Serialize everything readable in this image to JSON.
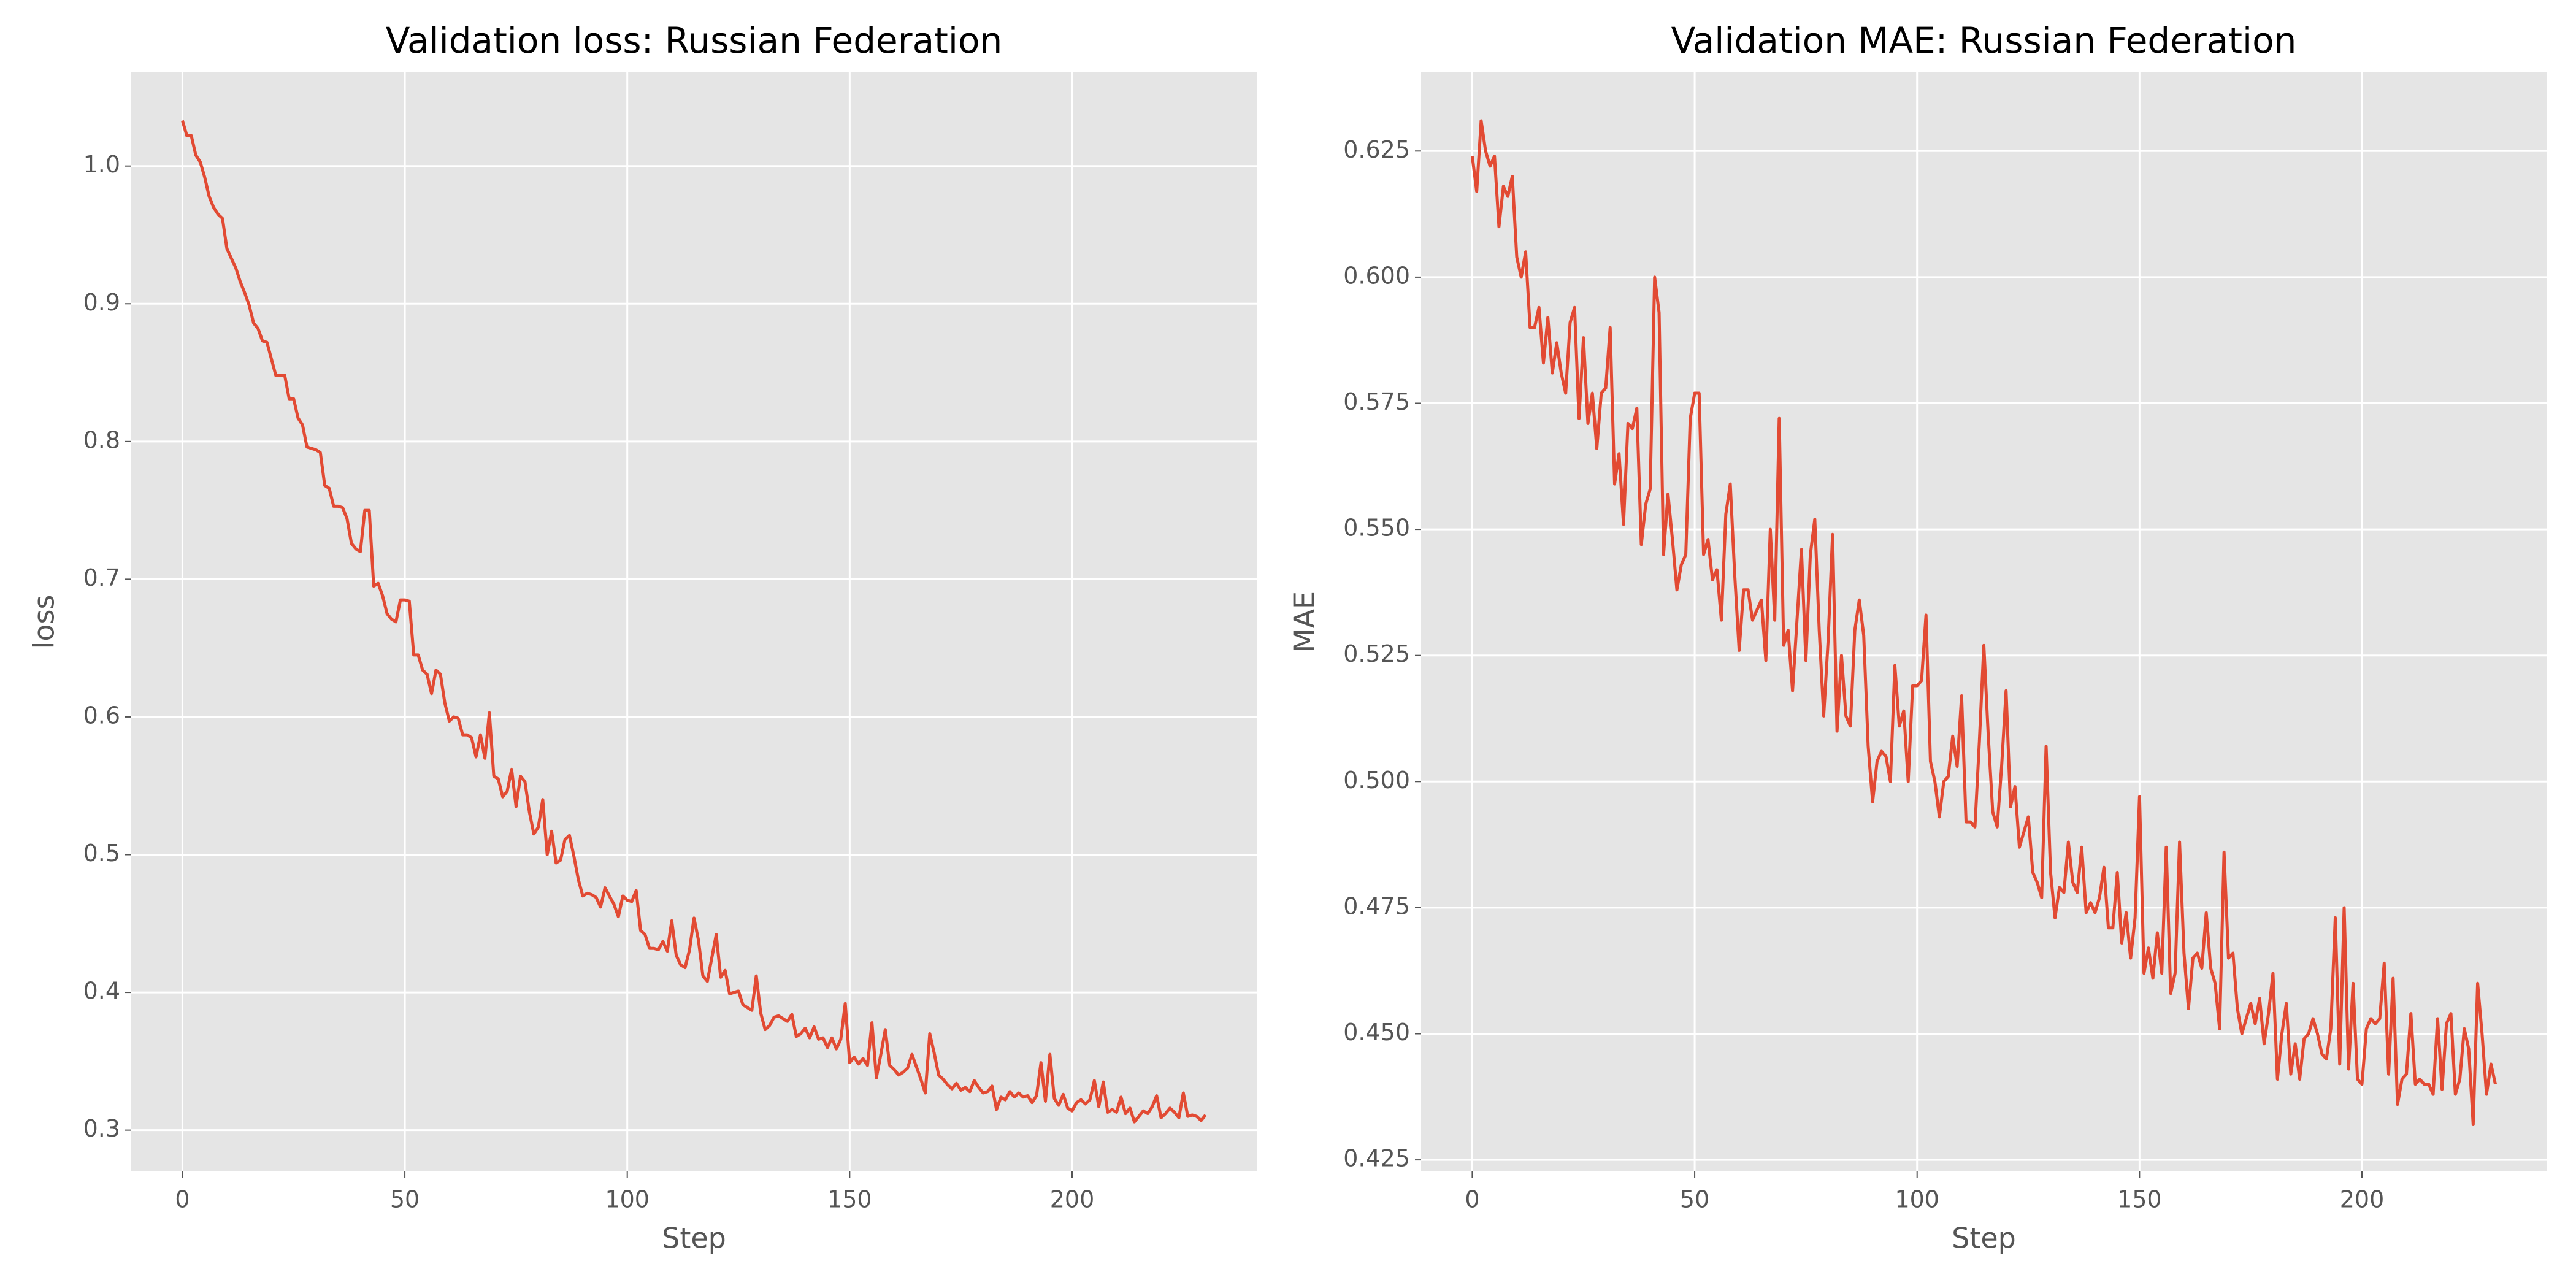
{
  "chart_data": [
    {
      "type": "line",
      "title": "Validation loss: Russian Federation",
      "xlabel": "Step",
      "ylabel": "loss",
      "color": "#e24a33",
      "grid": true,
      "xlim": [
        -11.5,
        241.5
      ],
      "xticks": [
        0,
        50,
        100,
        150,
        200
      ],
      "ylim": [
        0.27,
        1.068
      ],
      "yticks": [
        0.3,
        0.4,
        0.5,
        0.6,
        0.7,
        0.8,
        0.9,
        {
          "value": 1,
          "label": "1.0"
        }
      ],
      "x": [
        0,
        1,
        2,
        3,
        4,
        5,
        6,
        7,
        8,
        9,
        10,
        11,
        12,
        13,
        14,
        15,
        16,
        17,
        18,
        19,
        20,
        21,
        22,
        23,
        24,
        25,
        26,
        27,
        28,
        29,
        30,
        31,
        32,
        33,
        34,
        35,
        36,
        37,
        38,
        39,
        40,
        41,
        42,
        43,
        44,
        45,
        46,
        47,
        48,
        49,
        50,
        51,
        52,
        53,
        54,
        55,
        56,
        57,
        58,
        59,
        60,
        61,
        62,
        63,
        64,
        65,
        66,
        67,
        68,
        69,
        70,
        71,
        72,
        73,
        74,
        75,
        76,
        77,
        78,
        79,
        80,
        81,
        82,
        83,
        84,
        85,
        86,
        87,
        88,
        89,
        90,
        91,
        92,
        93,
        94,
        95,
        96,
        97,
        98,
        99,
        100,
        101,
        102,
        103,
        104,
        105,
        106,
        107,
        108,
        109,
        110,
        111,
        112,
        113,
        114,
        115,
        116,
        117,
        118,
        119,
        120,
        121,
        122,
        123,
        124,
        125,
        126,
        127,
        128,
        129,
        130,
        131,
        132,
        133,
        134,
        135,
        136,
        137,
        138,
        139,
        140,
        141,
        142,
        143,
        144,
        145,
        146,
        147,
        148,
        149,
        150,
        151,
        152,
        153,
        154,
        155,
        156,
        157,
        158,
        159,
        160,
        161,
        162,
        163,
        164,
        165,
        166,
        167,
        168,
        169,
        170,
        171,
        172,
        173,
        174,
        175,
        176,
        177,
        178,
        179,
        180,
        181,
        182,
        183,
        184,
        185,
        186,
        187,
        188,
        189,
        190,
        191,
        192,
        193,
        194,
        195,
        196,
        197,
        198,
        199,
        200,
        201,
        202,
        203,
        204,
        205,
        206,
        207,
        208,
        209,
        210,
        211,
        212,
        213,
        214,
        215,
        216,
        217,
        218,
        219,
        220,
        221,
        222,
        223,
        224,
        225,
        226,
        227,
        228,
        229,
        230
      ],
      "values": [
        1.033,
        1.022,
        1.022,
        1.008,
        1.003,
        0.992,
        0.978,
        0.97,
        0.965,
        0.962,
        0.94,
        0.933,
        0.926,
        0.916,
        0.908,
        0.899,
        0.886,
        0.882,
        0.873,
        0.872,
        0.86,
        0.848,
        0.848,
        0.848,
        0.831,
        0.831,
        0.817,
        0.812,
        0.796,
        0.795,
        0.794,
        0.792,
        0.768,
        0.766,
        0.753,
        0.753,
        0.752,
        0.744,
        0.726,
        0.722,
        0.72,
        0.75,
        0.75,
        0.695,
        0.697,
        0.688,
        0.675,
        0.671,
        0.669,
        0.685,
        0.685,
        0.684,
        0.645,
        0.645,
        0.634,
        0.631,
        0.617,
        0.634,
        0.631,
        0.61,
        0.597,
        0.6,
        0.599,
        0.587,
        0.587,
        0.585,
        0.571,
        0.587,
        0.57,
        0.603,
        0.557,
        0.555,
        0.542,
        0.546,
        0.562,
        0.535,
        0.557,
        0.553,
        0.531,
        0.515,
        0.52,
        0.54,
        0.5,
        0.517,
        0.494,
        0.496,
        0.511,
        0.514,
        0.499,
        0.482,
        0.47,
        0.472,
        0.471,
        0.469,
        0.462,
        0.476,
        0.47,
        0.464,
        0.455,
        0.47,
        0.467,
        0.466,
        0.474,
        0.445,
        0.442,
        0.432,
        0.432,
        0.431,
        0.437,
        0.43,
        0.452,
        0.427,
        0.42,
        0.418,
        0.431,
        0.454,
        0.438,
        0.412,
        0.408,
        0.425,
        0.442,
        0.411,
        0.416,
        0.399,
        0.4,
        0.401,
        0.391,
        0.389,
        0.387,
        0.412,
        0.385,
        0.373,
        0.376,
        0.382,
        0.383,
        0.381,
        0.379,
        0.384,
        0.368,
        0.37,
        0.374,
        0.367,
        0.375,
        0.366,
        0.367,
        0.36,
        0.367,
        0.359,
        0.366,
        0.392,
        0.349,
        0.353,
        0.348,
        0.352,
        0.347,
        0.378,
        0.338,
        0.355,
        0.373,
        0.347,
        0.344,
        0.34,
        0.342,
        0.345,
        0.355,
        0.346,
        0.337,
        0.327,
        0.37,
        0.356,
        0.34,
        0.337,
        0.333,
        0.33,
        0.334,
        0.329,
        0.331,
        0.328,
        0.336,
        0.331,
        0.327,
        0.328,
        0.332,
        0.315,
        0.324,
        0.322,
        0.328,
        0.324,
        0.327,
        0.324,
        0.325,
        0.32,
        0.325,
        0.349,
        0.321,
        0.355,
        0.323,
        0.318,
        0.326,
        0.316,
        0.314,
        0.32,
        0.322,
        0.319,
        0.322,
        0.336,
        0.317,
        0.335,
        0.313,
        0.315,
        0.313,
        0.324,
        0.312,
        0.316,
        0.306,
        0.31,
        0.314,
        0.312,
        0.317,
        0.325,
        0.309,
        0.312,
        0.316,
        0.313,
        0.309,
        0.327,
        0.31,
        0.311,
        0.31,
        0.307,
        0.311
      ]
    },
    {
      "type": "line",
      "title": "Validation MAE: Russian Federation",
      "xlabel": "Step",
      "ylabel": "MAE",
      "color": "#e24a33",
      "grid": true,
      "xlim": [
        -11.5,
        241.5
      ],
      "xticks": [
        0,
        50,
        100,
        150,
        200
      ],
      "ylim": [
        0.4227,
        0.6406
      ],
      "yticks": [
        0.425,
        {
          "value": 0.45,
          "label": "0.450"
        },
        0.475,
        {
          "value": 0.5,
          "label": "0.500"
        },
        0.525,
        {
          "value": 0.55,
          "label": "0.550"
        },
        0.575,
        {
          "value": 0.6,
          "label": "0.600"
        },
        0.625
      ],
      "x": [
        0,
        1,
        2,
        3,
        4,
        5,
        6,
        7,
        8,
        9,
        10,
        11,
        12,
        13,
        14,
        15,
        16,
        17,
        18,
        19,
        20,
        21,
        22,
        23,
        24,
        25,
        26,
        27,
        28,
        29,
        30,
        31,
        32,
        33,
        34,
        35,
        36,
        37,
        38,
        39,
        40,
        41,
        42,
        43,
        44,
        45,
        46,
        47,
        48,
        49,
        50,
        51,
        52,
        53,
        54,
        55,
        56,
        57,
        58,
        59,
        60,
        61,
        62,
        63,
        64,
        65,
        66,
        67,
        68,
        69,
        70,
        71,
        72,
        73,
        74,
        75,
        76,
        77,
        78,
        79,
        80,
        81,
        82,
        83,
        84,
        85,
        86,
        87,
        88,
        89,
        90,
        91,
        92,
        93,
        94,
        95,
        96,
        97,
        98,
        99,
        100,
        101,
        102,
        103,
        104,
        105,
        106,
        107,
        108,
        109,
        110,
        111,
        112,
        113,
        114,
        115,
        116,
        117,
        118,
        119,
        120,
        121,
        122,
        123,
        124,
        125,
        126,
        127,
        128,
        129,
        130,
        131,
        132,
        133,
        134,
        135,
        136,
        137,
        138,
        139,
        140,
        141,
        142,
        143,
        144,
        145,
        146,
        147,
        148,
        149,
        150,
        151,
        152,
        153,
        154,
        155,
        156,
        157,
        158,
        159,
        160,
        161,
        162,
        163,
        164,
        165,
        166,
        167,
        168,
        169,
        170,
        171,
        172,
        173,
        174,
        175,
        176,
        177,
        178,
        179,
        180,
        181,
        182,
        183,
        184,
        185,
        186,
        187,
        188,
        189,
        190,
        191,
        192,
        193,
        194,
        195,
        196,
        197,
        198,
        199,
        200,
        201,
        202,
        203,
        204,
        205,
        206,
        207,
        208,
        209,
        210,
        211,
        212,
        213,
        214,
        215,
        216,
        217,
        218,
        219,
        220,
        221,
        222,
        223,
        224,
        225,
        226,
        227,
        228,
        229,
        230
      ],
      "values": [
        0.624,
        0.617,
        0.631,
        0.625,
        0.622,
        0.624,
        0.61,
        0.618,
        0.616,
        0.62,
        0.604,
        0.6,
        0.605,
        0.59,
        0.59,
        0.594,
        0.583,
        0.592,
        0.581,
        0.587,
        0.581,
        0.577,
        0.591,
        0.594,
        0.572,
        0.588,
        0.571,
        0.577,
        0.566,
        0.577,
        0.578,
        0.59,
        0.559,
        0.565,
        0.551,
        0.571,
        0.57,
        0.574,
        0.547,
        0.555,
        0.558,
        0.6,
        0.593,
        0.545,
        0.557,
        0.548,
        0.538,
        0.543,
        0.545,
        0.572,
        0.577,
        0.577,
        0.545,
        0.548,
        0.54,
        0.542,
        0.532,
        0.553,
        0.559,
        0.541,
        0.526,
        0.538,
        0.538,
        0.532,
        0.534,
        0.536,
        0.524,
        0.55,
        0.532,
        0.572,
        0.527,
        0.53,
        0.518,
        0.532,
        0.546,
        0.524,
        0.545,
        0.552,
        0.53,
        0.513,
        0.528,
        0.549,
        0.51,
        0.525,
        0.513,
        0.511,
        0.53,
        0.536,
        0.529,
        0.507,
        0.496,
        0.504,
        0.506,
        0.505,
        0.5,
        0.523,
        0.511,
        0.514,
        0.5,
        0.519,
        0.519,
        0.52,
        0.533,
        0.504,
        0.5,
        0.493,
        0.5,
        0.501,
        0.509,
        0.503,
        0.517,
        0.492,
        0.492,
        0.491,
        0.508,
        0.527,
        0.509,
        0.494,
        0.491,
        0.503,
        0.518,
        0.495,
        0.499,
        0.487,
        0.49,
        0.493,
        0.482,
        0.48,
        0.477,
        0.507,
        0.482,
        0.473,
        0.479,
        0.478,
        0.488,
        0.48,
        0.478,
        0.487,
        0.474,
        0.476,
        0.474,
        0.477,
        0.483,
        0.471,
        0.471,
        0.482,
        0.468,
        0.474,
        0.465,
        0.473,
        0.497,
        0.462,
        0.467,
        0.461,
        0.47,
        0.462,
        0.487,
        0.458,
        0.462,
        0.488,
        0.466,
        0.455,
        0.465,
        0.466,
        0.463,
        0.474,
        0.463,
        0.46,
        0.451,
        0.486,
        0.465,
        0.466,
        0.455,
        0.45,
        0.453,
        0.456,
        0.452,
        0.457,
        0.448,
        0.454,
        0.462,
        0.441,
        0.45,
        0.456,
        0.442,
        0.448,
        0.441,
        0.449,
        0.45,
        0.453,
        0.45,
        0.446,
        0.445,
        0.451,
        0.473,
        0.444,
        0.475,
        0.443,
        0.46,
        0.441,
        0.44,
        0.451,
        0.453,
        0.452,
        0.453,
        0.464,
        0.442,
        0.461,
        0.436,
        0.441,
        0.442,
        0.454,
        0.44,
        0.441,
        0.44,
        0.44,
        0.438,
        0.453,
        0.439,
        0.452,
        0.454,
        0.438,
        0.441,
        0.451,
        0.447,
        0.432,
        0.46,
        0.45,
        0.438,
        0.444,
        0.44
      ]
    }
  ]
}
